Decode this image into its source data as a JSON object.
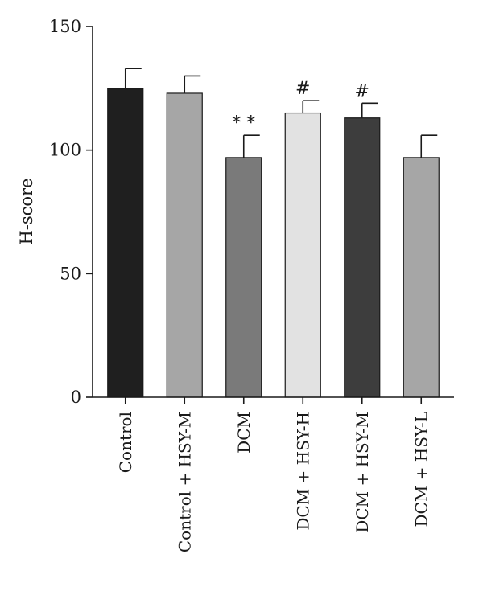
{
  "chart_data": {
    "type": "bar",
    "title": "",
    "xlabel": "",
    "ylabel": "H-score",
    "ylim": [
      0,
      150
    ],
    "yticks": [
      0,
      50,
      100,
      150
    ],
    "grid": false,
    "categories": [
      "Control",
      "Control + HSY-M",
      "DCM",
      "DCM + HSY-H",
      "DCM + HSY-M",
      "DCM + HSY-L"
    ],
    "values": [
      125,
      123,
      97,
      115,
      113,
      97
    ],
    "errors": [
      8,
      7,
      9,
      5,
      6,
      9
    ],
    "annotations": [
      "",
      "",
      "* *",
      "#",
      "#",
      ""
    ],
    "colors": [
      "#1f1f1f",
      "#a6a6a6",
      "#7a7a7a",
      "#e2e2e2",
      "#3d3d3d",
      "#a6a6a6"
    ]
  }
}
